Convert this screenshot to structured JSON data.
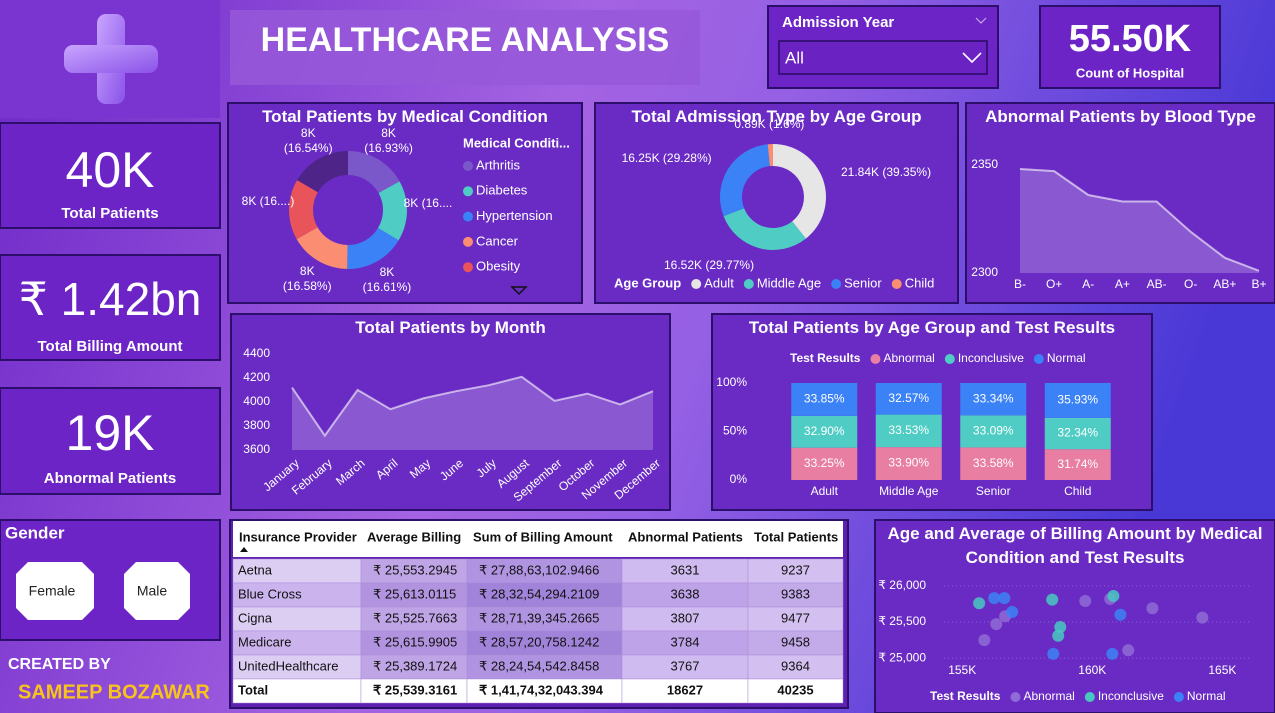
{
  "header": {
    "title": "HEALTHCARE ANALYSIS"
  },
  "slicer": {
    "label": "Admission Year",
    "value": "All"
  },
  "kpis": [
    {
      "value": "55.50K",
      "label": "Count of Hospital"
    },
    {
      "value": "40K",
      "label": "Total Patients"
    },
    {
      "value": "₹ 1.42bn",
      "label": "Total Billing Amount"
    },
    {
      "value": "19K",
      "label": "Abnormal Patients"
    }
  ],
  "gender": {
    "title": "Gender",
    "options": [
      "Female",
      "Male"
    ]
  },
  "credit": {
    "line1": "CREATED BY",
    "line2": "SAMEEP BOZAWAR"
  },
  "table": {
    "headers": [
      "Insurance Provider",
      "Average Billing",
      "Sum of Billing Amount",
      "Abnormal Patients",
      "Total Patients"
    ],
    "rows": [
      [
        "Aetna",
        "₹ 25,553.2945",
        "₹ 27,88,63,102.9466",
        3631,
        9237
      ],
      [
        "Blue Cross",
        "₹ 25,613.0115",
        "₹ 28,32,54,294.2109",
        3638,
        9383
      ],
      [
        "Cigna",
        "₹ 25,525.7663",
        "₹ 28,71,39,345.2665",
        3807,
        9477
      ],
      [
        "Medicare",
        "₹ 25,615.9905",
        "₹ 28,57,20,758.1242",
        3784,
        9458
      ],
      [
        "UnitedHealthcare",
        "₹ 25,389.1724",
        "₹ 28,24,54,542.8458",
        3767,
        9364
      ]
    ],
    "total": [
      "Total",
      "₹ 25,539.3161",
      "₹ 1,41,74,32,043.394",
      18627,
      40235
    ]
  },
  "chart_data": [
    {
      "type": "donut",
      "title": "Total Patients by Medical Condition",
      "legend_title": "Medical Conditi...",
      "legend": "right",
      "categories": [
        "Arthritis",
        "Diabetes",
        "Hypertension",
        "Cancer",
        "Obesity",
        null
      ],
      "values": [
        16.93,
        16.67,
        16.61,
        16.58,
        16.67,
        16.54
      ],
      "value_labels": [
        "8K (16.93%)",
        "8K (16....",
        "8K (16.61%)",
        "8K (16.58%)",
        "8K (16....)",
        "8K (16.54%)"
      ],
      "colors": [
        "#7b58c9",
        "#4fcdc5",
        "#3b82f6",
        "#fb8d72",
        "#e8545a",
        "#4f2489"
      ]
    },
    {
      "type": "donut",
      "title": "Total Admission Type by Age Group",
      "legend_title": "Age Group",
      "legend": "bottom",
      "categories": [
        "Adult",
        "Middle Age",
        "Senior",
        "Child"
      ],
      "values": [
        21.84,
        16.52,
        16.25,
        0.89
      ],
      "value_labels": [
        "21.84K (39.35%)",
        "16.52K (29.77%)",
        "16.25K (29.28%)",
        "0.89K (1.6%)"
      ],
      "colors": [
        "#e6e6e6",
        "#4fcdc5",
        "#3b82f6",
        "#fb8d72"
      ]
    },
    {
      "type": "area",
      "title": "Abnormal Patients by Blood Type",
      "categories": [
        "B-",
        "O+",
        "A-",
        "A+",
        "AB-",
        "O-",
        "AB+",
        "B+"
      ],
      "values": [
        2348,
        2347,
        2336,
        2333,
        2333,
        2319,
        2307,
        2301
      ],
      "ylim": [
        2300,
        2360
      ],
      "yticks": [
        2300,
        2350
      ],
      "color": "#ffffff"
    },
    {
      "type": "area",
      "title": "Total Patients by Month",
      "categories": [
        "January",
        "February",
        "March",
        "April",
        "May",
        "June",
        "July",
        "August",
        "September",
        "October",
        "November",
        "December"
      ],
      "values": [
        4120,
        3720,
        4100,
        3940,
        4030,
        4090,
        4140,
        4210,
        4010,
        4070,
        3980,
        4090
      ],
      "ylim": [
        3600,
        4400
      ],
      "yticks": [
        3600,
        3800,
        4000,
        4200,
        4400
      ],
      "color": "#ffffff"
    },
    {
      "type": "bar",
      "stacked": true,
      "title": "Total Patients by Age Group and Test Results",
      "legend_title": "Test Results",
      "categories": [
        "Adult",
        "Middle Age",
        "Senior",
        "Child"
      ],
      "series": [
        {
          "name": "Abnormal",
          "color": "#e87ea1",
          "values": [
            33.25,
            33.9,
            33.58,
            31.74
          ],
          "value_labels": [
            "33.25%",
            "33.90%",
            "33.58%",
            "31.74%"
          ]
        },
        {
          "name": "Inconclusive",
          "color": "#4fcdc5",
          "values": [
            32.9,
            33.53,
            33.09,
            32.34
          ],
          "value_labels": [
            "32.90%",
            "33.53%",
            "33.09%",
            "32.34%"
          ]
        },
        {
          "name": "Normal",
          "color": "#3b82f6",
          "values": [
            33.85,
            32.57,
            33.34,
            35.93
          ],
          "value_labels": [
            "33.85%",
            "32.57%",
            "33.34%",
            "35.93%"
          ]
        }
      ],
      "ylim": [
        0,
        100
      ],
      "yticks": [
        {
          "value": 0,
          "label": "0%"
        },
        {
          "value": 50,
          "label": "50%"
        },
        {
          "value": 100,
          "label": "100%"
        }
      ]
    },
    {
      "type": "scatter",
      "title": "Age and Average of Billing Amount by Medical Condition and Test Results",
      "legend_title": "Test Results",
      "series": [
        {
          "name": "Abnormal",
          "color": "#8e6bd6",
          "x": [
            156310,
            156650,
            159730,
            160690,
            162310,
            164230,
            155850,
            161380
          ],
          "values": [
            25470,
            25580,
            25790,
            25820,
            25690,
            25560,
            25250,
            25110
          ]
        },
        {
          "name": "Inconclusive",
          "color": "#47c9c0",
          "x": [
            155650,
            158460,
            160810,
            158770,
            158690
          ],
          "values": [
            25760,
            25810,
            25860,
            25430,
            25310
          ]
        },
        {
          "name": "Normal",
          "color": "#3b82f6",
          "x": [
            156230,
            156620,
            156920,
            161080,
            158500,
            160770
          ],
          "values": [
            25830,
            25830,
            25640,
            25600,
            25060,
            25060
          ]
        }
      ],
      "xlim": [
        154300,
        166100
      ],
      "xticks": [
        {
          "value": 155000,
          "label": "155K"
        },
        {
          "value": 160000,
          "label": "160K"
        },
        {
          "value": 165000,
          "label": "165K"
        }
      ],
      "ylim": [
        24850,
        26150
      ],
      "yticks": [
        {
          "value": 25000,
          "label": "₹ 25,000"
        },
        {
          "value": 25500,
          "label": "₹ 25,500"
        },
        {
          "value": 26000,
          "label": "₹ 26,000"
        }
      ],
      "grid": true
    }
  ]
}
